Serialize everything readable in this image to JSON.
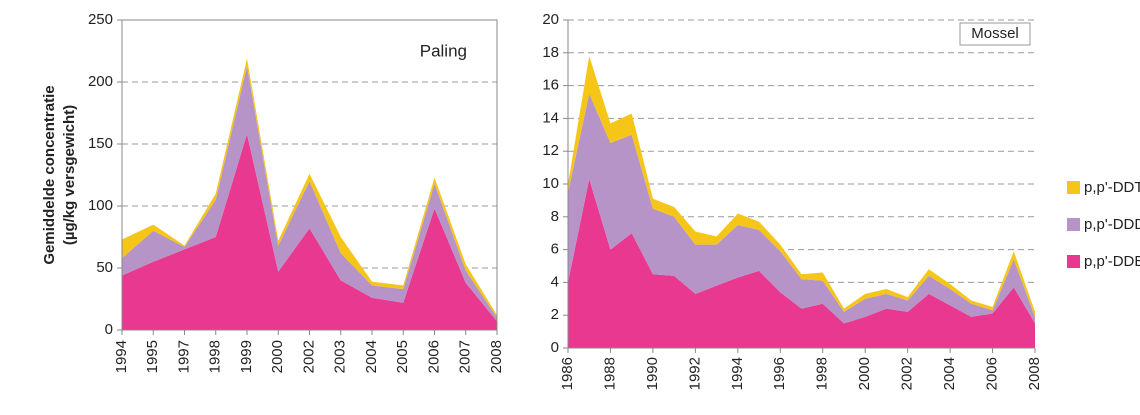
{
  "chart_data": [
    {
      "type": "area",
      "stacked": true,
      "title": "Paling",
      "ylabel": [
        "Gemiddelde concentratie",
        "(µg/kg versgewicht)"
      ],
      "categories": [
        "1994",
        "1995",
        "1997",
        "1998",
        "1999",
        "2000",
        "2002",
        "2003",
        "2004",
        "2005",
        "2006",
        "2007",
        "2008"
      ],
      "series": [
        {
          "color": "#e8388f",
          "values": [
            44,
            55,
            65,
            75,
            158,
            47,
            82,
            40,
            26,
            22,
            98,
            38,
            7
          ]
        },
        {
          "color": "#b794c8",
          "values": [
            14,
            25,
            2,
            30,
            55,
            21,
            38,
            22,
            10,
            11,
            20,
            10,
            3
          ]
        },
        {
          "color": "#f5c518",
          "values": [
            15,
            5,
            1,
            5,
            6,
            4,
            6,
            13,
            3,
            3,
            5,
            5,
            2
          ]
        }
      ],
      "ylim": [
        0,
        250
      ],
      "yticks": [
        0,
        50,
        100,
        150,
        200,
        250
      ],
      "grid": true
    },
    {
      "type": "area",
      "stacked": true,
      "title": "Mossel",
      "x": [
        1986,
        1987,
        1988,
        1989,
        1990,
        1991,
        1992,
        1993,
        1994,
        1995,
        1996,
        1997,
        1998,
        1999,
        2000,
        2001,
        2002,
        2003,
        2004,
        2005,
        2006,
        2007,
        2008
      ],
      "xlim": [
        1986,
        2008
      ],
      "xticks": [
        1986,
        1988,
        1990,
        1992,
        1994,
        1996,
        1998,
        2000,
        2002,
        2004,
        2006,
        2008
      ],
      "series": [
        {
          "name": "p,p'-DDE",
          "color": "#e8388f",
          "values": [
            4,
            10.3,
            6,
            7,
            4.5,
            4.4,
            3.3,
            3.8,
            4.3,
            4.7,
            3.4,
            2.4,
            2.7,
            1.5,
            1.9,
            2.4,
            2.2,
            3.3,
            2.6,
            1.9,
            2.1,
            3.7,
            1.5
          ]
        },
        {
          "name": "p,p'-DDD",
          "color": "#b794c8",
          "values": [
            5.5,
            5.2,
            6.5,
            6,
            4,
            3.6,
            3,
            2.5,
            3.2,
            2.5,
            2.5,
            1.8,
            1.4,
            0.7,
            1.1,
            0.9,
            0.7,
            1.1,
            1.0,
            0.8,
            0.2,
            1.7,
            0.4
          ]
        },
        {
          "name": "p,p'-DDT",
          "color": "#f5c518",
          "values": [
            0.5,
            2.3,
            1.2,
            1.3,
            0.6,
            0.6,
            0.8,
            0.5,
            0.7,
            0.5,
            0.4,
            0.3,
            0.5,
            0.2,
            0.3,
            0.3,
            0.2,
            0.4,
            0.3,
            0.2,
            0.2,
            0.5,
            0.3
          ]
        }
      ],
      "ylim": [
        0,
        20
      ],
      "yticks": [
        0,
        2,
        4,
        6,
        8,
        10,
        12,
        14,
        16,
        18,
        20
      ],
      "grid": true,
      "legend": "right"
    }
  ]
}
